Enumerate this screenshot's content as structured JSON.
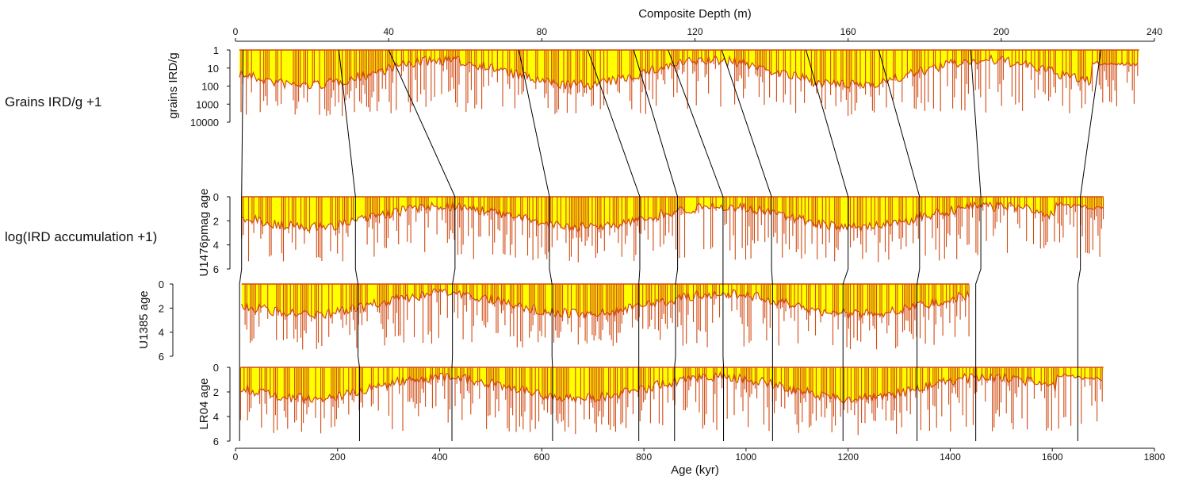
{
  "colors": {
    "fill": "#ffff00",
    "line": "#d24a12",
    "axis": "#111111",
    "tie": "#000000"
  },
  "side_labels": {
    "grains": "Grains IRD/g +1",
    "accumulation": "log(IRD accumulation +1)"
  },
  "chart_data": {
    "type": "area",
    "top_axis": {
      "label": "Composite Depth (m)",
      "ticks": [
        0,
        40,
        80,
        120,
        160,
        200,
        240
      ],
      "range": [
        0,
        240
      ]
    },
    "bottom_axis": {
      "label": "Age (kyr)",
      "ticks": [
        0,
        200,
        400,
        600,
        800,
        1000,
        1200,
        1400,
        1600,
        1800
      ],
      "range": [
        0,
        1800
      ]
    },
    "panels": [
      {
        "id": "grains",
        "ylabel": "grains IRD/g",
        "scale": "log",
        "y_inverted": true,
        "yticks": [
          "1",
          "10",
          "100",
          "1000",
          "10000"
        ],
        "ylim": [
          1,
          10000
        ],
        "x_units": "depth_m",
        "x_extent": [
          1,
          236
        ]
      },
      {
        "id": "u1476",
        "ylabel": "U1476pmag age",
        "scale": "linear",
        "y_inverted": true,
        "yticks": [
          "0",
          "2",
          "4",
          "6"
        ],
        "ylim": [
          0,
          6
        ],
        "x_units": "age_kyr",
        "x_extent": [
          12,
          1700
        ]
      },
      {
        "id": "u1385",
        "ylabel": "U1385 age",
        "scale": "linear",
        "y_inverted": true,
        "yticks": [
          "0",
          "2",
          "4",
          "6"
        ],
        "ylim": [
          0,
          6
        ],
        "x_units": "age_kyr",
        "x_extent": [
          12,
          1437
        ]
      },
      {
        "id": "lr04",
        "ylabel": "LR04 age",
        "scale": "linear",
        "y_inverted": true,
        "yticks": [
          "0",
          "2",
          "4",
          "6"
        ],
        "ylim": [
          0,
          6
        ],
        "x_units": "age_kyr",
        "x_extent": [
          10,
          1700
        ]
      }
    ],
    "tie_points": [
      {
        "depth_m": 2,
        "u1476_kyr": 12,
        "u1385_kyr": 8,
        "lr04_kyr": 8
      },
      {
        "depth_m": 27,
        "u1476_kyr": 235,
        "u1385_kyr": 240,
        "lr04_kyr": 243
      },
      {
        "depth_m": 40,
        "u1476_kyr": 430,
        "u1385_kyr": 425,
        "lr04_kyr": 424
      },
      {
        "depth_m": 74,
        "u1476_kyr": 615,
        "u1385_kyr": 620,
        "lr04_kyr": 621
      },
      {
        "depth_m": 92,
        "u1476_kyr": 792,
        "u1385_kyr": 790,
        "lr04_kyr": 790
      },
      {
        "depth_m": 104,
        "u1476_kyr": 866,
        "u1385_kyr": 862,
        "lr04_kyr": 860
      },
      {
        "depth_m": 113,
        "u1476_kyr": 955,
        "u1385_kyr": 955,
        "lr04_kyr": 956
      },
      {
        "depth_m": 127,
        "u1476_kyr": 1050,
        "u1385_kyr": 1052,
        "lr04_kyr": 1052
      },
      {
        "depth_m": 149,
        "u1476_kyr": 1200,
        "u1385_kyr": 1190,
        "lr04_kyr": 1190
      },
      {
        "depth_m": 168,
        "u1476_kyr": 1340,
        "u1385_kyr": 1335,
        "lr04_kyr": 1335
      },
      {
        "depth_m": 192,
        "u1476_kyr": 1460,
        "u1385_kyr": 1450,
        "lr04_kyr": 1450
      },
      {
        "depth_m": 226,
        "u1476_kyr": 1655,
        "u1385_kyr": 1650,
        "lr04_kyr": 1650
      }
    ],
    "grid": false
  }
}
